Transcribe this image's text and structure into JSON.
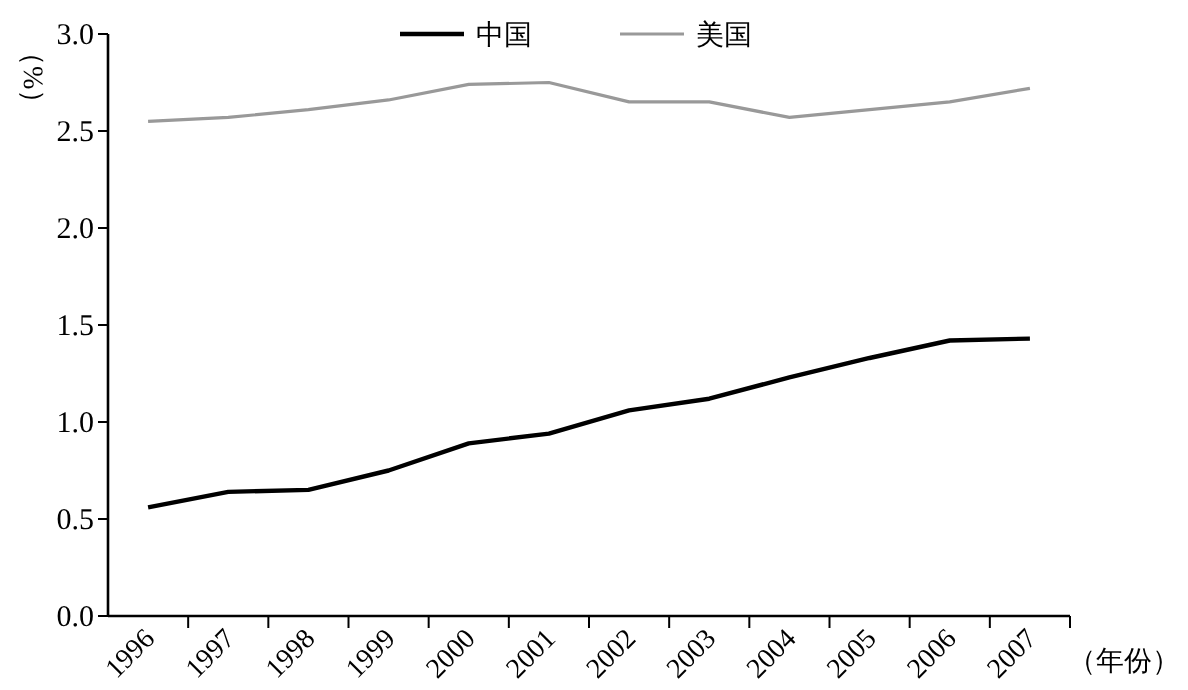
{
  "chart_data": {
    "type": "line",
    "xlabel": "（年份）",
    "ylabel": "（%）",
    "categories": [
      "1996",
      "1997",
      "1998",
      "1999",
      "2000",
      "2001",
      "2002",
      "2003",
      "2004",
      "2005",
      "2006",
      "2007"
    ],
    "series": [
      {
        "name": "中国",
        "color": "#000000",
        "values": [
          0.56,
          0.64,
          0.65,
          0.75,
          0.89,
          0.94,
          1.06,
          1.12,
          1.23,
          1.33,
          1.42,
          1.43
        ]
      },
      {
        "name": "美国",
        "color": "#999999",
        "values": [
          2.55,
          2.57,
          2.61,
          2.66,
          2.74,
          2.75,
          2.65,
          2.65,
          2.57,
          2.61,
          2.65,
          2.72
        ]
      }
    ],
    "ylim": [
      0,
      3
    ],
    "yticks": [
      {
        "value": 0,
        "label": "0.0"
      },
      {
        "value": 0.5,
        "label": "0.5"
      },
      {
        "value": 1,
        "label": "1.0"
      },
      {
        "value": 1.5,
        "label": "1.5"
      },
      {
        "value": 2,
        "label": "2.0"
      },
      {
        "value": 2.5,
        "label": "2.5"
      },
      {
        "value": 3,
        "label": "3.0"
      }
    ],
    "legend": "top",
    "grid": false,
    "marker": "none"
  }
}
